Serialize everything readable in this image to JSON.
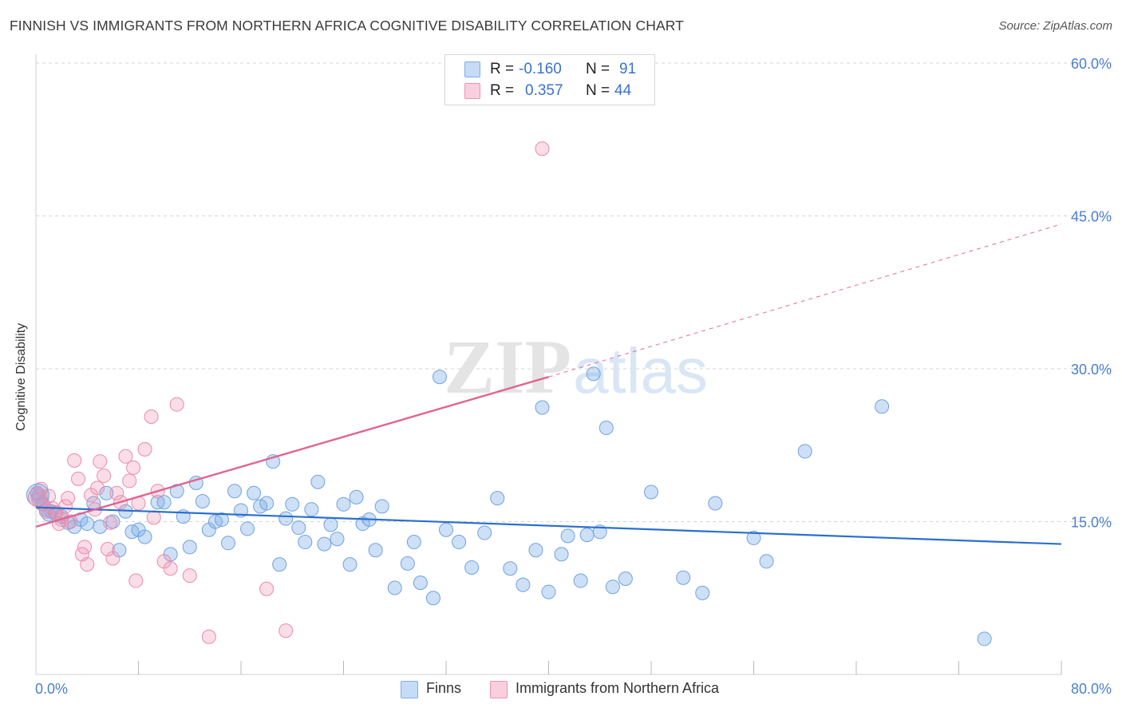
{
  "title": "FINNISH VS IMMIGRANTS FROM NORTHERN AFRICA COGNITIVE DISABILITY CORRELATION CHART",
  "source": "Source: ZipAtlas.com",
  "watermark": "ZIPatlas",
  "legend": {
    "rows": [
      {
        "r_label": "R =",
        "r_value": "-0.160",
        "n_label": "N =",
        "n_value": "91"
      },
      {
        "r_label": "R =",
        "r_value": "0.357",
        "n_label": "N =",
        "n_value": "44"
      }
    ]
  },
  "bottom_legend": {
    "finns": "Finns",
    "immigrants": "Immigrants from Northern Africa"
  },
  "colors": {
    "blue": "#7eaee8",
    "blue_line": "#2a6fcf",
    "pink": "#ee92b0",
    "pink_line": "#e06591",
    "tick": "#4a7fd0",
    "grid": "#d5d5d5"
  },
  "chart_data": {
    "type": "scatter",
    "xlabel": "",
    "ylabel": "Cognitive Disability",
    "xlim": [
      0,
      80
    ],
    "ylim": [
      0,
      60
    ],
    "x_tick_labels": [
      "0.0%",
      "80.0%"
    ],
    "y_tick_labels": [
      "15.0%",
      "30.0%",
      "45.0%",
      "60.0%"
    ],
    "y_ticks": [
      15,
      30,
      45,
      60
    ],
    "series": [
      {
        "name": "Finns",
        "color": "#7eaee8",
        "trend": {
          "x0": 0,
          "y0": 16.4,
          "x1": 80,
          "y1": 12.8,
          "dashed_to": null
        },
        "points": [
          [
            0.2,
            17.5
          ],
          [
            0.5,
            16.8
          ],
          [
            0.8,
            16.2
          ],
          [
            1.2,
            16.0
          ],
          [
            1.5,
            15.8
          ],
          [
            2.0,
            15.5
          ],
          [
            2.5,
            14.9
          ],
          [
            3.0,
            14.5
          ],
          [
            3.5,
            15.2
          ],
          [
            4.0,
            14.8
          ],
          [
            4.5,
            16.8
          ],
          [
            5.0,
            14.5
          ],
          [
            5.5,
            17.8
          ],
          [
            6.0,
            15.0
          ],
          [
            6.5,
            12.2
          ],
          [
            7.0,
            16.0
          ],
          [
            7.5,
            14.0
          ],
          [
            8.0,
            14.2
          ],
          [
            8.5,
            13.5
          ],
          [
            9.5,
            16.9
          ],
          [
            10.0,
            16.9
          ],
          [
            10.5,
            11.8
          ],
          [
            11.0,
            18.0
          ],
          [
            11.5,
            15.5
          ],
          [
            12.0,
            12.5
          ],
          [
            12.5,
            18.8
          ],
          [
            13.0,
            17.0
          ],
          [
            13.5,
            14.2
          ],
          [
            14.0,
            15.0
          ],
          [
            14.5,
            15.2
          ],
          [
            15.0,
            12.9
          ],
          [
            15.5,
            18.0
          ],
          [
            16.0,
            16.1
          ],
          [
            16.5,
            14.3
          ],
          [
            17.0,
            17.8
          ],
          [
            17.5,
            16.5
          ],
          [
            18.0,
            16.8
          ],
          [
            18.5,
            20.9
          ],
          [
            19.0,
            10.8
          ],
          [
            19.5,
            15.3
          ],
          [
            20.0,
            16.7
          ],
          [
            20.5,
            14.4
          ],
          [
            21.0,
            13.0
          ],
          [
            21.5,
            16.2
          ],
          [
            22.0,
            18.9
          ],
          [
            22.5,
            12.8
          ],
          [
            23.0,
            14.7
          ],
          [
            23.5,
            13.3
          ],
          [
            24.0,
            16.7
          ],
          [
            24.5,
            10.8
          ],
          [
            25.0,
            17.4
          ],
          [
            25.5,
            14.8
          ],
          [
            26.0,
            15.2
          ],
          [
            26.5,
            12.2
          ],
          [
            27.0,
            16.5
          ],
          [
            28.0,
            8.5
          ],
          [
            29.0,
            10.9
          ],
          [
            29.5,
            13.0
          ],
          [
            30.0,
            9.0
          ],
          [
            31.0,
            7.5
          ],
          [
            31.5,
            29.2
          ],
          [
            32.0,
            14.2
          ],
          [
            33.0,
            13.0
          ],
          [
            34.0,
            10.5
          ],
          [
            35.0,
            13.9
          ],
          [
            36.0,
            17.3
          ],
          [
            37.0,
            10.4
          ],
          [
            38.0,
            8.8
          ],
          [
            39.0,
            12.2
          ],
          [
            39.5,
            26.2
          ],
          [
            40.0,
            8.1
          ],
          [
            41.0,
            11.8
          ],
          [
            41.5,
            13.6
          ],
          [
            42.5,
            9.2
          ],
          [
            43.0,
            13.7
          ],
          [
            43.5,
            29.5
          ],
          [
            44.0,
            14.0
          ],
          [
            44.5,
            24.2
          ],
          [
            45.0,
            8.6
          ],
          [
            46.0,
            9.4
          ],
          [
            48.0,
            17.9
          ],
          [
            50.5,
            9.5
          ],
          [
            52.0,
            8.0
          ],
          [
            53.0,
            16.8
          ],
          [
            56.0,
            13.4
          ],
          [
            57.0,
            11.1
          ],
          [
            60.0,
            21.9
          ],
          [
            66.0,
            26.3
          ],
          [
            74.0,
            3.5
          ],
          [
            0.1,
            17.8
          ],
          [
            1.0,
            15.7
          ]
        ]
      },
      {
        "name": "Immigrants from Northern Africa",
        "color": "#ee92b0",
        "trend": {
          "x0": 0,
          "y0": 14.5,
          "x1": 40,
          "y1": 29.2,
          "dashed_to": {
            "x": 80,
            "y": 44.2
          }
        },
        "points": [
          [
            0.2,
            17.2
          ],
          [
            0.5,
            16.7
          ],
          [
            0.8,
            16.0
          ],
          [
            1.0,
            17.5
          ],
          [
            1.3,
            16.3
          ],
          [
            1.6,
            15.9
          ],
          [
            2.0,
            15.2
          ],
          [
            2.3,
            16.5
          ],
          [
            2.7,
            15.0
          ],
          [
            3.0,
            21.0
          ],
          [
            3.3,
            19.2
          ],
          [
            3.6,
            11.8
          ],
          [
            4.0,
            10.8
          ],
          [
            4.3,
            17.6
          ],
          [
            4.6,
            16.2
          ],
          [
            5.0,
            20.9
          ],
          [
            5.3,
            19.5
          ],
          [
            5.6,
            12.3
          ],
          [
            6.0,
            11.4
          ],
          [
            6.3,
            17.8
          ],
          [
            6.6,
            16.9
          ],
          [
            7.0,
            21.4
          ],
          [
            7.3,
            19.0
          ],
          [
            7.6,
            20.3
          ],
          [
            8.0,
            16.8
          ],
          [
            8.5,
            22.1
          ],
          [
            9.0,
            25.3
          ],
          [
            9.5,
            18.0
          ],
          [
            10.0,
            11.1
          ],
          [
            10.5,
            10.4
          ],
          [
            11.0,
            26.5
          ],
          [
            12.0,
            9.7
          ],
          [
            13.5,
            3.7
          ],
          [
            18.0,
            8.4
          ],
          [
            19.5,
            4.3
          ],
          [
            39.5,
            51.6
          ],
          [
            0.4,
            18.2
          ],
          [
            1.8,
            14.8
          ],
          [
            2.5,
            17.3
          ],
          [
            3.8,
            12.5
          ],
          [
            5.8,
            14.9
          ],
          [
            7.8,
            9.2
          ],
          [
            9.2,
            15.4
          ],
          [
            4.8,
            18.3
          ]
        ]
      }
    ]
  }
}
